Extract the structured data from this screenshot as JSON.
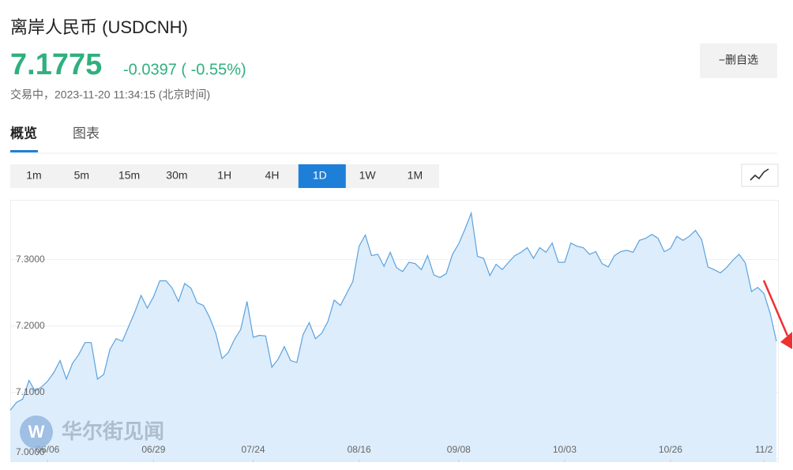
{
  "header": {
    "title": "离岸人民币 (USDCNH)",
    "price": "7.1775",
    "change": "-0.0397 ( -0.55%)",
    "status": "交易中，2023-11-20 11:34:15 (北京时间)"
  },
  "button": "−删自选",
  "tabs": [
    "概览",
    "图表"
  ],
  "active_tab": 0,
  "periods": [
    "1m",
    "5m",
    "15m",
    "30m",
    "1H",
    "4H",
    "1D",
    "1W",
    "1M"
  ],
  "active_period": 6,
  "chart_data": {
    "type": "line",
    "watermark": "华尔街见闻",
    "color": "#5aa2e0",
    "fill": "#deedfb",
    "grid": true,
    "values": [
      7.073,
      7.085,
      7.09,
      7.118,
      7.102,
      7.108,
      7.117,
      7.13,
      7.148,
      7.12,
      7.144,
      7.157,
      7.175,
      7.175,
      7.12,
      7.127,
      7.165,
      7.181,
      7.177,
      7.199,
      7.221,
      7.246,
      7.227,
      7.244,
      7.268,
      7.268,
      7.257,
      7.237,
      7.264,
      7.257,
      7.235,
      7.231,
      7.213,
      7.189,
      7.151,
      7.16,
      7.18,
      7.195,
      7.237,
      7.183,
      7.186,
      7.185,
      7.138,
      7.15,
      7.169,
      7.148,
      7.145,
      7.187,
      7.205,
      7.181,
      7.189,
      7.207,
      7.239,
      7.231,
      7.249,
      7.267,
      7.32,
      7.337,
      7.306,
      7.308,
      7.29,
      7.311,
      7.288,
      7.282,
      7.296,
      7.294,
      7.285,
      7.306,
      7.277,
      7.273,
      7.279,
      7.308,
      7.324,
      7.346,
      7.37,
      7.305,
      7.302,
      7.276,
      7.293,
      7.285,
      7.296,
      7.306,
      7.311,
      7.318,
      7.302,
      7.318,
      7.311,
      7.325,
      7.296,
      7.296,
      7.325,
      7.32,
      7.318,
      7.308,
      7.312,
      7.294,
      7.289,
      7.306,
      7.312,
      7.314,
      7.311,
      7.329,
      7.332,
      7.338,
      7.332,
      7.312,
      7.317,
      7.335,
      7.329,
      7.335,
      7.344,
      7.33,
      7.289,
      7.285,
      7.28,
      7.288,
      7.299,
      7.308,
      7.295,
      7.252,
      7.258,
      7.249,
      7.219,
      7.177
    ],
    "xlim": [
      0,
      123
    ],
    "xticks": [
      {
        "value": 6,
        "label": "06/06"
      },
      {
        "value": 23,
        "label": "06/29"
      },
      {
        "value": 39,
        "label": "07/24"
      },
      {
        "value": 56,
        "label": "08/16"
      },
      {
        "value": 72,
        "label": "09/08"
      },
      {
        "value": 89,
        "label": "10/03"
      },
      {
        "value": 106,
        "label": "10/26"
      },
      {
        "value": 121,
        "label": "11/2"
      }
    ],
    "ylim": [
      6.995,
      7.39
    ],
    "yticks": [
      {
        "value": 7.0,
        "label": "7.0000"
      },
      {
        "value": 7.1,
        "label": "7.1000"
      },
      {
        "value": 7.2,
        "label": "7.2000"
      },
      {
        "value": 7.3,
        "label": "7.3000"
      }
    ]
  }
}
